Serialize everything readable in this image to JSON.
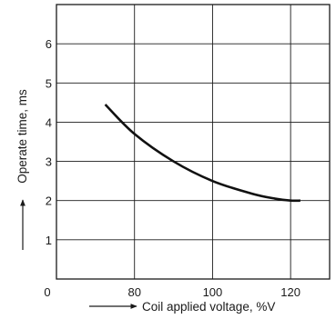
{
  "chart_data": {
    "type": "line",
    "title": "",
    "xlabel": "Coil applied voltage, %V",
    "ylabel": "Operate time, ms",
    "xlim": [
      60,
      130
    ],
    "ylim": [
      0,
      7
    ],
    "x_ticks": [
      80,
      100,
      120
    ],
    "y_ticks": [
      1,
      2,
      3,
      4,
      5,
      6
    ],
    "origin_label": "0",
    "grid": true,
    "series": [
      {
        "x": [
          72.5,
          80,
          90,
          100,
          110,
          116,
          120,
          122.5
        ],
        "y": [
          4.45,
          3.7,
          3.0,
          2.5,
          2.18,
          2.05,
          2.0,
          2.0
        ]
      }
    ]
  }
}
